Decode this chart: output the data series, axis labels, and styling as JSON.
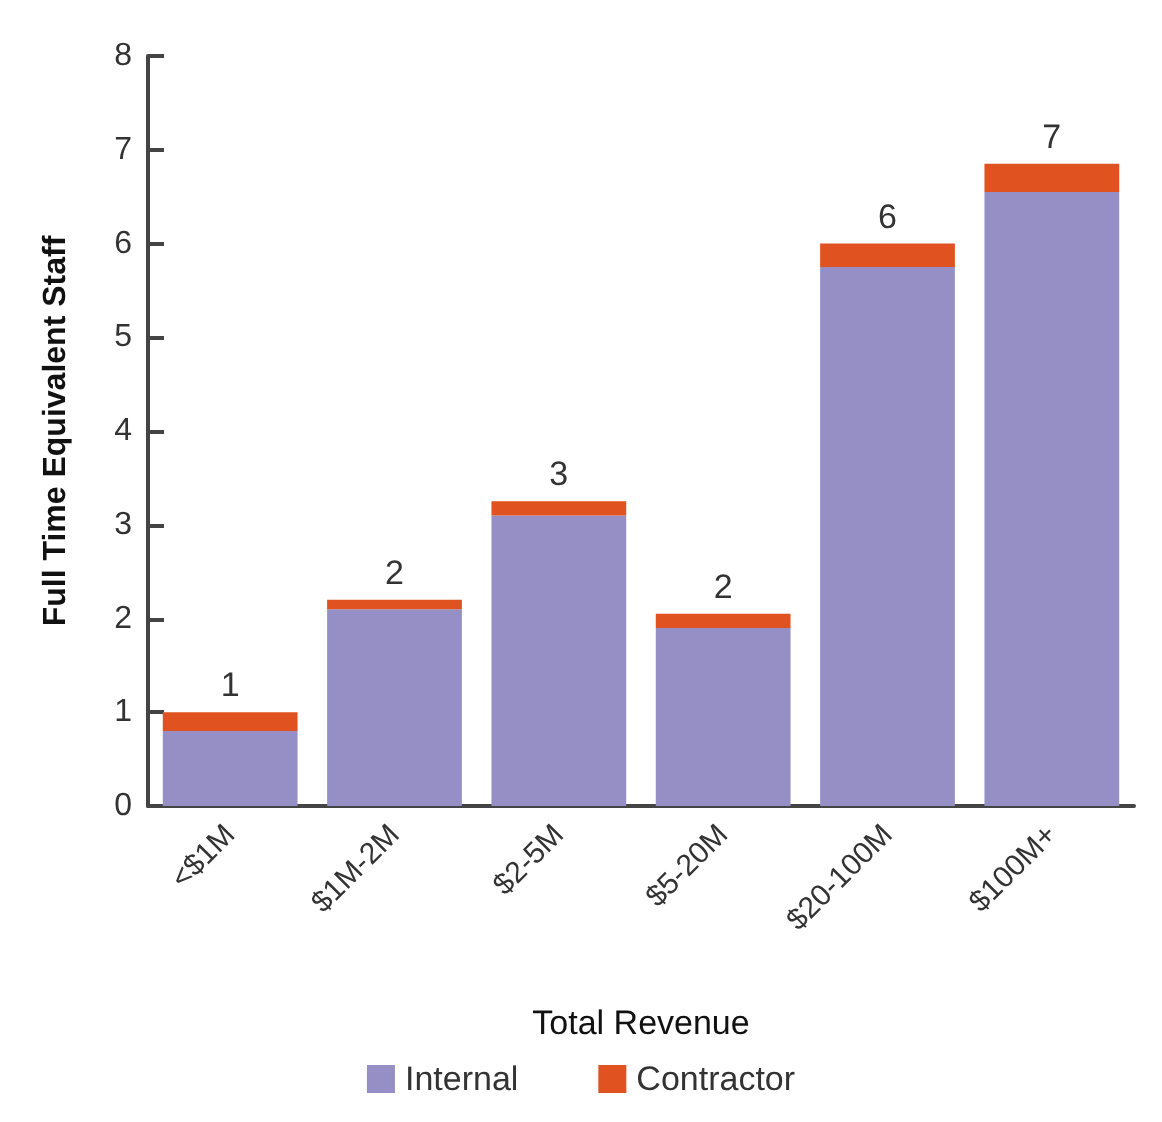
{
  "chart_data": {
    "type": "bar",
    "stacked": true,
    "xlabel": "Total Revenue",
    "ylabel": "Full Time Equivalent Staff",
    "categories": [
      "<$1M",
      "$1M-2M",
      "$2-5M",
      "$5-20M",
      "$20-100M",
      "$100M+"
    ],
    "series": [
      {
        "name": "Internal",
        "color": "#958fc6",
        "values": [
          0.8,
          2.1,
          3.1,
          1.9,
          5.75,
          6.55
        ]
      },
      {
        "name": "Contractor",
        "color": "#e0521f",
        "values": [
          0.2,
          0.1,
          0.15,
          0.15,
          0.25,
          0.3
        ]
      }
    ],
    "totals": [
      "1",
      "2",
      "3",
      "2",
      "6",
      "7"
    ],
    "ylim": [
      0,
      8
    ],
    "yticks": [
      0,
      1,
      2,
      3,
      4,
      5,
      6,
      7,
      8
    ],
    "grid": false,
    "legend": "bottom"
  }
}
